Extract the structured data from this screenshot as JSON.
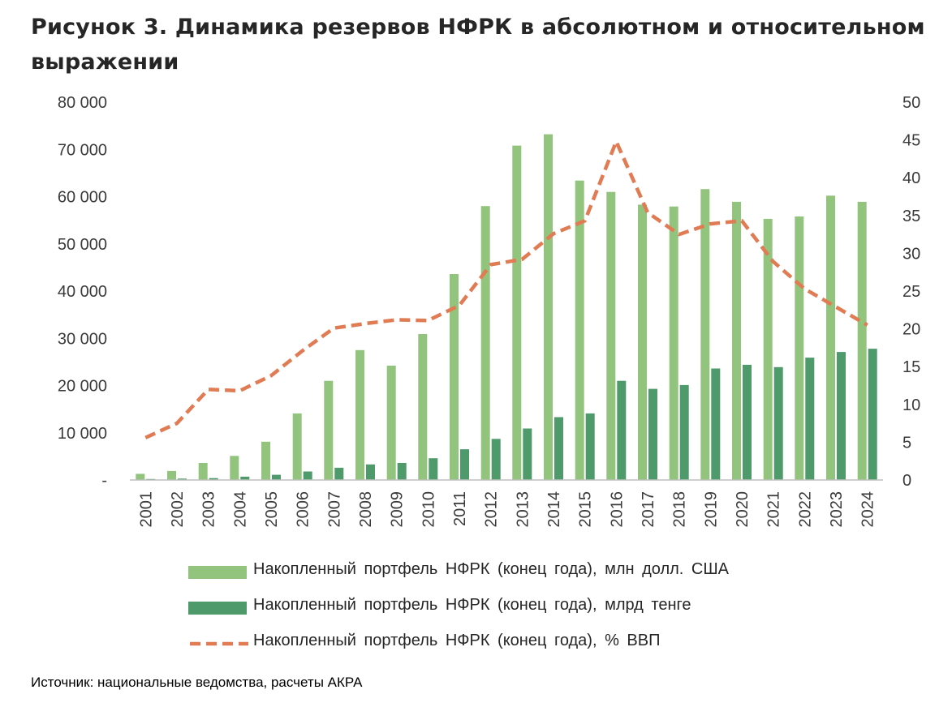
{
  "title": "Рисунок 3. Динамика резервов НФРК в абсолютном и относительном выражении",
  "source": "Источник: национальные ведомства, расчеты АКРА",
  "colors": {
    "usd_bar": "#93c47d",
    "kzt_bar": "#4e9a6b",
    "gdp_line": "#e07b53",
    "axis": "#bfbfbf",
    "text": "#3a3a3a"
  },
  "chart_data": {
    "type": "bar",
    "categories": [
      "2001",
      "2002",
      "2003",
      "2004",
      "2005",
      "2006",
      "2007",
      "2008",
      "2009",
      "2010",
      "2011",
      "2012",
      "2013",
      "2014",
      "2015",
      "2016",
      "2017",
      "2018",
      "2019",
      "2020",
      "2021",
      "2022",
      "2023",
      "2024"
    ],
    "y_left": {
      "ticks": [
        0,
        10000,
        20000,
        30000,
        40000,
        50000,
        60000,
        70000,
        80000
      ],
      "tick_labels": [
        "-",
        "10 000",
        "20 000",
        "30 000",
        "40 000",
        "50 000",
        "60 000",
        "70 000",
        "80 000"
      ],
      "range": [
        0,
        80000
      ]
    },
    "y_right": {
      "ticks": [
        0,
        5,
        10,
        15,
        20,
        25,
        30,
        35,
        40,
        45,
        50
      ],
      "tick_labels": [
        "0",
        "5",
        "10",
        "15",
        "20",
        "25",
        "30",
        "35",
        "40",
        "45",
        "50"
      ],
      "range": [
        0,
        50
      ]
    },
    "series": [
      {
        "name": "Накопленный портфель НФРК (конец года), млн долл. США",
        "type": "bar",
        "axis": "left",
        "color": "#93c47d",
        "values": [
          1300,
          1900,
          3600,
          5100,
          8100,
          14100,
          21000,
          27500,
          24200,
          30900,
          43600,
          58000,
          70800,
          73200,
          63400,
          61000,
          58300,
          57900,
          61600,
          58900,
          55300,
          55800,
          60200,
          58900
        ]
      },
      {
        "name": "Накопленный портфель НФРК (конец года), млрд тенге",
        "type": "bar",
        "axis": "left",
        "color": "#4e9a6b",
        "values": [
          200,
          300,
          400,
          700,
          1100,
          1800,
          2600,
          3300,
          3600,
          4600,
          6500,
          8700,
          10900,
          13300,
          14100,
          21000,
          19300,
          20100,
          23600,
          24400,
          23900,
          25900,
          27100,
          27800
        ]
      },
      {
        "name": "Накопленный портфель НФРК (конец года), % ВВП",
        "type": "line",
        "axis": "right",
        "color": "#e07b53",
        "values": [
          5.6,
          7.5,
          12.0,
          11.8,
          13.8,
          17.1,
          20.1,
          20.7,
          21.2,
          21.1,
          23.1,
          28.5,
          29.2,
          32.6,
          34.3,
          44.8,
          35.4,
          32.5,
          33.9,
          34.3,
          28.9,
          25.3,
          22.9,
          20.5
        ]
      }
    ]
  }
}
